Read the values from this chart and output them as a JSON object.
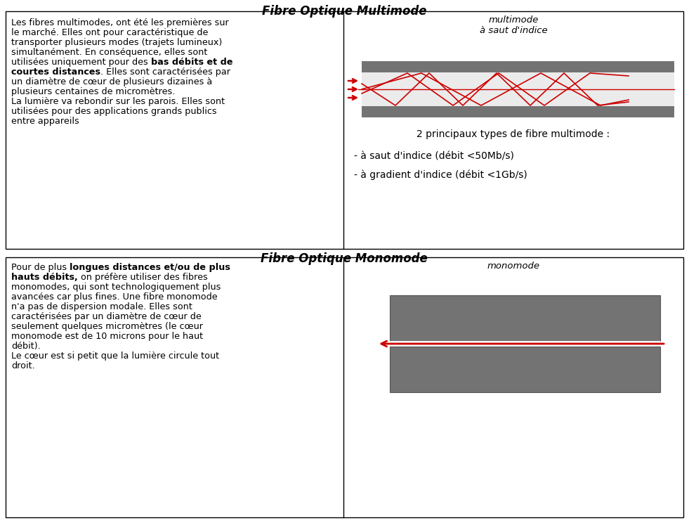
{
  "title_multimode": "Fibre Optique Multimode",
  "title_monomode": "Fibre Optique Monomode",
  "diagram_label_multimode": "multimode\nà saut d'indice",
  "diagram_label_monomode": "monomode",
  "types_text_line1": "2 principaux types de fibre multimode :",
  "types_text_line2": "- à saut d'indice (débit <50Mb/s)",
  "types_text_line3": "- à gradient d'indice (débit <1Gb/s)",
  "bg_color": "#ffffff",
  "border_color": "#000000",
  "line_color": "#cc0000",
  "text_color": "#000000",
  "gray_rect": "#737373",
  "core_color": "#ebebeb",
  "fontsize_text": 9.2,
  "fontsize_title": 12,
  "fontsize_diagram": 9.5,
  "render_lines_multi": [
    [
      [
        "Les fibres multimodes, ont été les premières sur",
        false
      ]
    ],
    [
      [
        "le marché. Elles ont pour caractéristique de",
        false
      ]
    ],
    [
      [
        "transporter plusieurs modes (trajets lumineux)",
        false
      ]
    ],
    [
      [
        "simultanément. En conséquence, elles sont",
        false
      ]
    ],
    [
      [
        "utilisées uniquement pour des ",
        false
      ],
      [
        "bas débits et de",
        true
      ]
    ],
    [
      [
        "courtes distances",
        true
      ],
      [
        ". Elles sont caractérisées par",
        false
      ]
    ],
    [
      [
        "un diamètre de cœur de plusieurs dizaines à",
        false
      ]
    ],
    [
      [
        "plusieurs centaines de micromètres.",
        false
      ]
    ],
    [
      [
        "La lumière va rebondir sur les parois. Elles sont",
        false
      ]
    ],
    [
      [
        "utilisées pour des applications grands publics",
        false
      ]
    ],
    [
      [
        "entre appareils",
        false
      ]
    ]
  ],
  "render_lines_mono": [
    [
      [
        "Pour de plus ",
        false
      ],
      [
        "longues distances et/ou de plus",
        true
      ]
    ],
    [
      [
        "hauts débits,",
        true
      ],
      [
        " on préfère utiliser des fibres",
        false
      ]
    ],
    [
      [
        "monomodes, qui sont technologiquement plus",
        false
      ]
    ],
    [
      [
        "avancées car plus fines. Une fibre monomode",
        false
      ]
    ],
    [
      [
        "n'a pas de dispersion modale. Elles sont",
        false
      ]
    ],
    [
      [
        "caractérisées par un diamètre de cœur de",
        false
      ]
    ],
    [
      [
        "seulement quelques micromètres (le cœur",
        false
      ]
    ],
    [
      [
        "monomode est de 10 microns pour le haut",
        false
      ]
    ],
    [
      [
        "débit).",
        false
      ]
    ],
    [
      [
        "Le cœur est si petit que la lumière circule tout",
        false
      ]
    ],
    [
      [
        "droit.",
        false
      ]
    ]
  ]
}
